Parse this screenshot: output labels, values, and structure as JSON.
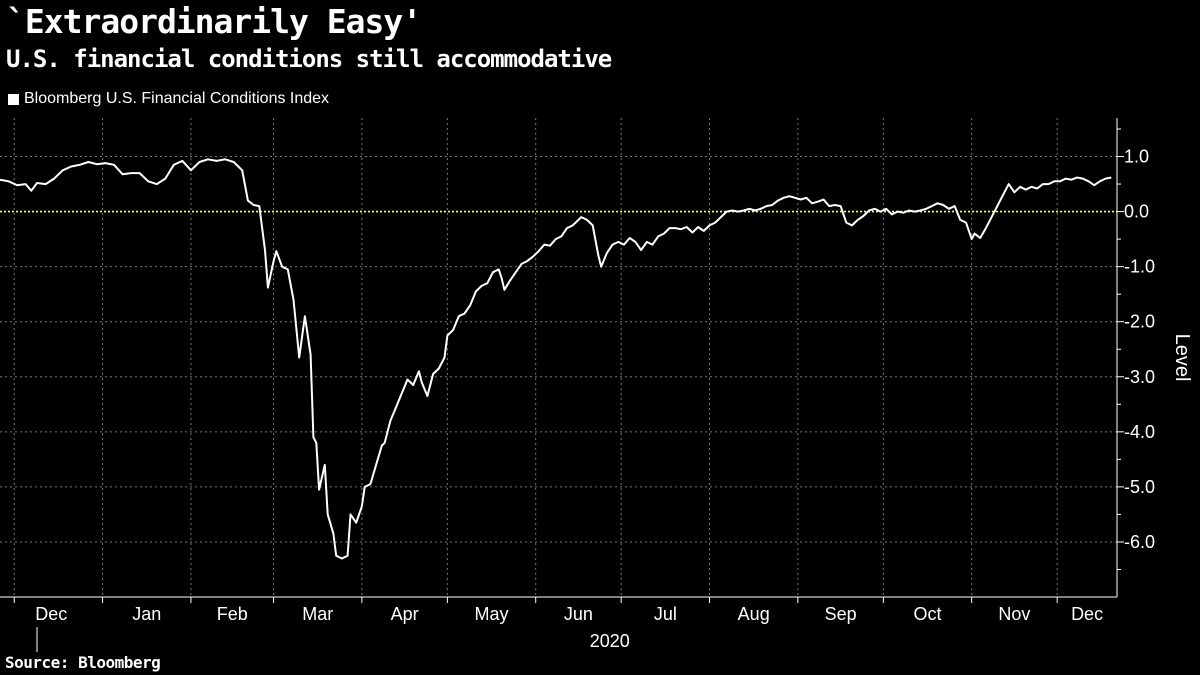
{
  "header": {
    "title": "`Extraordinarily Easy'",
    "subtitle": "U.S. financial conditions still accommodative"
  },
  "footer": {
    "source": "Source: Bloomberg"
  },
  "colors": {
    "background": "#000000",
    "line": "#ffffff",
    "zero_line": "#ffff66",
    "grid": "#777777"
  },
  "chart_data": {
    "type": "line",
    "title": "`Extraordinarily Easy'",
    "subtitle": "U.S. financial conditions still accommodative",
    "ylabel": "Level",
    "xlabel": "2020",
    "ylim": [
      -7.0,
      1.7
    ],
    "yticks": [
      1.0,
      0.0,
      -1.0,
      -2.0,
      -3.0,
      -4.0,
      -5.0,
      -6.0
    ],
    "ytick_labels": [
      "1.0",
      "0.0",
      "-1.0",
      "-2.0",
      "-3.0",
      "-4.0",
      "-5.0",
      "-6.0"
    ],
    "x_month_labels": [
      "Dec",
      "Jan",
      "Feb",
      "Mar",
      "Apr",
      "May",
      "Jun",
      "Jul",
      "Aug",
      "Sep",
      "Oct",
      "Nov",
      "Dec"
    ],
    "x_year_label": "2020",
    "xlim": [
      "2019-11-26",
      "2020-12-22"
    ],
    "zero_line": 0.0,
    "legend_position": "top-left",
    "grid": true,
    "series": [
      {
        "name": "Bloomberg U.S. Financial Conditions Index",
        "points": [
          [
            "2019-11-26",
            0.58
          ],
          [
            "2019-11-29",
            0.55
          ],
          [
            "2019-12-02",
            0.48
          ],
          [
            "2019-12-05",
            0.5
          ],
          [
            "2019-12-07",
            0.38
          ],
          [
            "2019-12-09",
            0.52
          ],
          [
            "2019-12-12",
            0.5
          ],
          [
            "2019-12-15",
            0.6
          ],
          [
            "2019-12-18",
            0.75
          ],
          [
            "2019-12-21",
            0.82
          ],
          [
            "2019-12-24",
            0.85
          ],
          [
            "2019-12-27",
            0.9
          ],
          [
            "2019-12-30",
            0.86
          ],
          [
            "2020-01-02",
            0.88
          ],
          [
            "2020-01-05",
            0.85
          ],
          [
            "2020-01-08",
            0.68
          ],
          [
            "2020-01-11",
            0.7
          ],
          [
            "2020-01-14",
            0.7
          ],
          [
            "2020-01-17",
            0.55
          ],
          [
            "2020-01-20",
            0.5
          ],
          [
            "2020-01-23",
            0.6
          ],
          [
            "2020-01-26",
            0.85
          ],
          [
            "2020-01-29",
            0.92
          ],
          [
            "2020-02-01",
            0.75
          ],
          [
            "2020-02-04",
            0.9
          ],
          [
            "2020-02-07",
            0.95
          ],
          [
            "2020-02-10",
            0.92
          ],
          [
            "2020-02-13",
            0.95
          ],
          [
            "2020-02-16",
            0.9
          ],
          [
            "2020-02-19",
            0.75
          ],
          [
            "2020-02-21",
            0.2
          ],
          [
            "2020-02-23",
            0.12
          ],
          [
            "2020-02-25",
            0.1
          ],
          [
            "2020-02-27",
            -0.7
          ],
          [
            "2020-02-28",
            -1.38
          ],
          [
            "2020-03-01",
            -0.9
          ],
          [
            "2020-03-02",
            -0.72
          ],
          [
            "2020-03-04",
            -1.0
          ],
          [
            "2020-03-06",
            -1.05
          ],
          [
            "2020-03-08",
            -1.6
          ],
          [
            "2020-03-10",
            -2.65
          ],
          [
            "2020-03-12",
            -1.9
          ],
          [
            "2020-03-14",
            -2.6
          ],
          [
            "2020-03-15",
            -4.1
          ],
          [
            "2020-03-16",
            -4.2
          ],
          [
            "2020-03-17",
            -5.05
          ],
          [
            "2020-03-19",
            -4.6
          ],
          [
            "2020-03-20",
            -5.5
          ],
          [
            "2020-03-22",
            -5.85
          ],
          [
            "2020-03-23",
            -6.25
          ],
          [
            "2020-03-25",
            -6.3
          ],
          [
            "2020-03-27",
            -6.25
          ],
          [
            "2020-03-28",
            -5.5
          ],
          [
            "2020-03-30",
            -5.65
          ],
          [
            "2020-04-01",
            -5.35
          ],
          [
            "2020-04-02",
            -5.0
          ],
          [
            "2020-04-04",
            -4.95
          ],
          [
            "2020-04-06",
            -4.6
          ],
          [
            "2020-04-08",
            -4.25
          ],
          [
            "2020-04-09",
            -4.2
          ],
          [
            "2020-04-11",
            -3.8
          ],
          [
            "2020-04-13",
            -3.55
          ],
          [
            "2020-04-15",
            -3.3
          ],
          [
            "2020-04-17",
            -3.05
          ],
          [
            "2020-04-19",
            -3.15
          ],
          [
            "2020-04-21",
            -2.9
          ],
          [
            "2020-04-22",
            -3.1
          ],
          [
            "2020-04-24",
            -3.35
          ],
          [
            "2020-04-26",
            -2.95
          ],
          [
            "2020-04-28",
            -2.85
          ],
          [
            "2020-04-30",
            -2.65
          ],
          [
            "2020-05-01",
            -2.25
          ],
          [
            "2020-05-03",
            -2.15
          ],
          [
            "2020-05-05",
            -1.9
          ],
          [
            "2020-05-07",
            -1.85
          ],
          [
            "2020-05-09",
            -1.7
          ],
          [
            "2020-05-11",
            -1.45
          ],
          [
            "2020-05-13",
            -1.35
          ],
          [
            "2020-05-15",
            -1.3
          ],
          [
            "2020-05-17",
            -1.1
          ],
          [
            "2020-05-19",
            -1.05
          ],
          [
            "2020-05-20",
            -1.2
          ],
          [
            "2020-05-21",
            -1.42
          ],
          [
            "2020-05-23",
            -1.25
          ],
          [
            "2020-05-25",
            -1.1
          ],
          [
            "2020-05-27",
            -0.95
          ],
          [
            "2020-05-29",
            -0.9
          ],
          [
            "2020-05-31",
            -0.82
          ],
          [
            "2020-06-02",
            -0.72
          ],
          [
            "2020-06-04",
            -0.6
          ],
          [
            "2020-06-06",
            -0.62
          ],
          [
            "2020-06-08",
            -0.5
          ],
          [
            "2020-06-10",
            -0.45
          ],
          [
            "2020-06-12",
            -0.3
          ],
          [
            "2020-06-14",
            -0.25
          ],
          [
            "2020-06-16",
            -0.15
          ],
          [
            "2020-06-17",
            -0.1
          ],
          [
            "2020-06-19",
            -0.15
          ],
          [
            "2020-06-21",
            -0.25
          ],
          [
            "2020-06-23",
            -0.8
          ],
          [
            "2020-06-24",
            -1.0
          ],
          [
            "2020-06-26",
            -0.75
          ],
          [
            "2020-06-28",
            -0.6
          ],
          [
            "2020-06-30",
            -0.55
          ],
          [
            "2020-07-02",
            -0.6
          ],
          [
            "2020-07-04",
            -0.48
          ],
          [
            "2020-07-06",
            -0.55
          ],
          [
            "2020-07-08",
            -0.7
          ],
          [
            "2020-07-10",
            -0.55
          ],
          [
            "2020-07-12",
            -0.6
          ],
          [
            "2020-07-14",
            -0.45
          ],
          [
            "2020-07-16",
            -0.4
          ],
          [
            "2020-07-18",
            -0.3
          ],
          [
            "2020-07-20",
            -0.3
          ],
          [
            "2020-07-22",
            -0.32
          ],
          [
            "2020-07-24",
            -0.28
          ],
          [
            "2020-07-26",
            -0.38
          ],
          [
            "2020-07-28",
            -0.28
          ],
          [
            "2020-07-30",
            -0.35
          ],
          [
            "2020-08-01",
            -0.25
          ],
          [
            "2020-08-03",
            -0.2
          ],
          [
            "2020-08-05",
            -0.1
          ],
          [
            "2020-08-07",
            0.0
          ],
          [
            "2020-08-09",
            0.02
          ],
          [
            "2020-08-11",
            0.0
          ],
          [
            "2020-08-13",
            0.02
          ],
          [
            "2020-08-15",
            0.05
          ],
          [
            "2020-08-17",
            0.02
          ],
          [
            "2020-08-19",
            0.05
          ],
          [
            "2020-08-21",
            0.1
          ],
          [
            "2020-08-23",
            0.12
          ],
          [
            "2020-08-25",
            0.2
          ],
          [
            "2020-08-27",
            0.25
          ],
          [
            "2020-08-29",
            0.28
          ],
          [
            "2020-08-31",
            0.25
          ],
          [
            "2020-09-02",
            0.22
          ],
          [
            "2020-09-04",
            0.25
          ],
          [
            "2020-09-06",
            0.15
          ],
          [
            "2020-09-08",
            0.18
          ],
          [
            "2020-09-10",
            0.22
          ],
          [
            "2020-09-12",
            0.1
          ],
          [
            "2020-09-14",
            0.12
          ],
          [
            "2020-09-16",
            0.1
          ],
          [
            "2020-09-18",
            -0.2
          ],
          [
            "2020-09-20",
            -0.25
          ],
          [
            "2020-09-22",
            -0.15
          ],
          [
            "2020-09-24",
            -0.08
          ],
          [
            "2020-09-26",
            0.02
          ],
          [
            "2020-09-28",
            0.05
          ],
          [
            "2020-09-30",
            0.0
          ],
          [
            "2020-10-02",
            0.05
          ],
          [
            "2020-10-04",
            -0.05
          ],
          [
            "2020-10-06",
            0.0
          ],
          [
            "2020-10-08",
            -0.02
          ],
          [
            "2020-10-10",
            0.02
          ],
          [
            "2020-10-12",
            0.0
          ],
          [
            "2020-10-14",
            0.02
          ],
          [
            "2020-10-16",
            0.05
          ],
          [
            "2020-10-18",
            0.1
          ],
          [
            "2020-10-20",
            0.15
          ],
          [
            "2020-10-22",
            0.12
          ],
          [
            "2020-10-24",
            0.05
          ],
          [
            "2020-10-26",
            0.1
          ],
          [
            "2020-10-28",
            -0.15
          ],
          [
            "2020-10-30",
            -0.2
          ],
          [
            "2020-11-01",
            -0.5
          ],
          [
            "2020-11-02",
            -0.4
          ],
          [
            "2020-11-04",
            -0.48
          ],
          [
            "2020-11-06",
            -0.3
          ],
          [
            "2020-11-08",
            -0.1
          ],
          [
            "2020-11-10",
            0.1
          ],
          [
            "2020-11-12",
            0.3
          ],
          [
            "2020-11-14",
            0.5
          ],
          [
            "2020-11-16",
            0.35
          ],
          [
            "2020-11-18",
            0.45
          ],
          [
            "2020-11-20",
            0.4
          ],
          [
            "2020-11-22",
            0.45
          ],
          [
            "2020-11-24",
            0.42
          ],
          [
            "2020-11-26",
            0.5
          ],
          [
            "2020-11-28",
            0.5
          ],
          [
            "2020-11-30",
            0.55
          ],
          [
            "2020-12-02",
            0.55
          ],
          [
            "2020-12-04",
            0.6
          ],
          [
            "2020-12-06",
            0.58
          ],
          [
            "2020-12-08",
            0.62
          ],
          [
            "2020-12-10",
            0.6
          ],
          [
            "2020-12-12",
            0.55
          ],
          [
            "2020-12-14",
            0.48
          ],
          [
            "2020-12-16",
            0.55
          ],
          [
            "2020-12-18",
            0.6
          ],
          [
            "2020-12-20",
            0.62
          ]
        ]
      }
    ]
  }
}
